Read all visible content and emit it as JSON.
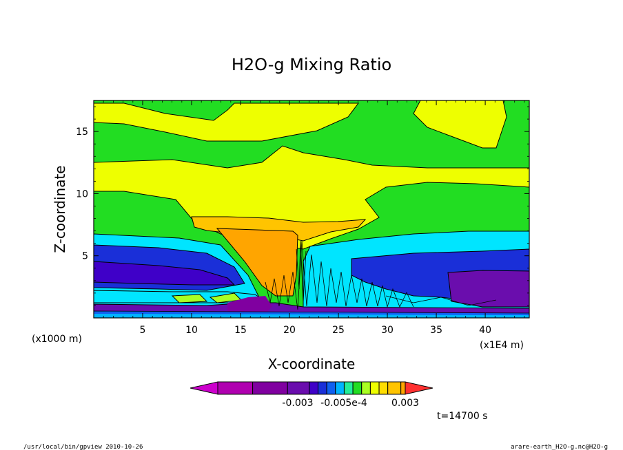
{
  "chart_data": {
    "type": "heatmap",
    "title": "H2O-g Mixing Ratio",
    "xlabel": "X-coordinate",
    "ylabel": "Z-coordinate",
    "x_unit_left": "(x1000 m)",
    "x_unit_right": "(x1E4 m)",
    "xlim": [
      0,
      44.5
    ],
    "ylim": [
      0,
      17.5
    ],
    "x_ticks": [
      5,
      10,
      15,
      20,
      25,
      30,
      35,
      40
    ],
    "y_ticks": [
      5,
      10,
      15
    ],
    "colorbar_labels": [
      "-0.003",
      "-0.005e-4",
      "0.003"
    ],
    "colorbar_colors": [
      "#cc00cc",
      "#b000b0",
      "#8000a0",
      "#6a0dad",
      "#3f00c8",
      "#1a2fd8",
      "#1060f0",
      "#00b4ff",
      "#22ee99",
      "#22dd22",
      "#aaff22",
      "#eeff00",
      "#ffdd00",
      "#ffc400",
      "#ffa500",
      "#ff3030"
    ],
    "time_label": "t=14700 s",
    "footer_left": "/usr/local/bin/gpview  2010-10-26",
    "footer_right": "arare-earth_H2O-g.nc@H2O-g"
  }
}
